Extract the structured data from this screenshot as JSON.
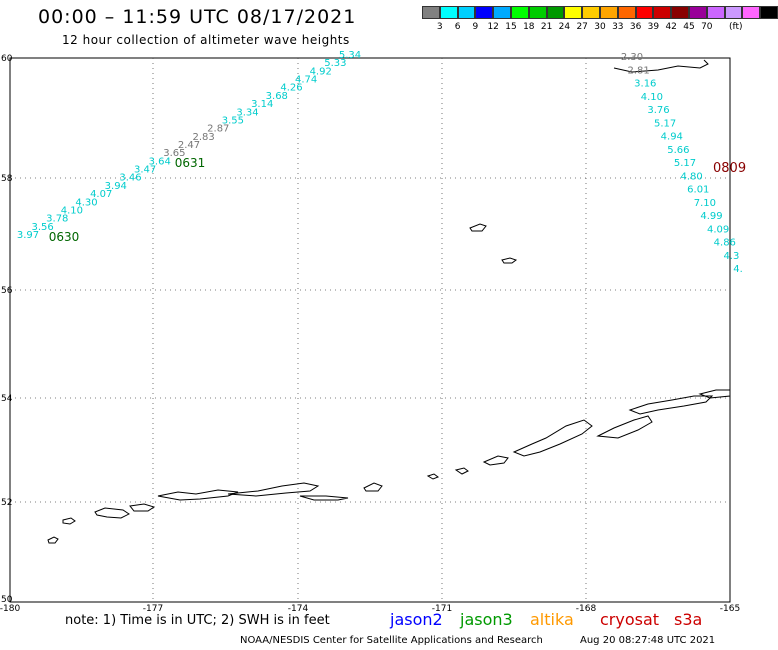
{
  "title": "00:00 – 11:59 UTC 08/17/2021",
  "subtitle": "12 hour collection of altimeter wave heights",
  "legend": {
    "colors": [
      "#808080",
      "#00ffff",
      "#00d0ff",
      "#0000ff",
      "#00aaff",
      "#00ff00",
      "#00cc00",
      "#009900",
      "#ffff00",
      "#ffcc00",
      "#ffa500",
      "#ff6600",
      "#ff0000",
      "#cc0000",
      "#880000",
      "#990099",
      "#cc66ff",
      "#cc99ff",
      "#ff66ff",
      "#000000"
    ],
    "labels": [
      "3",
      "6",
      "9",
      "12",
      "15",
      "18",
      "21",
      "24",
      "27",
      "30",
      "33",
      "36",
      "39",
      "42",
      "45",
      "70"
    ],
    "unit": "(ft)"
  },
  "axes": {
    "lon_ticks": [
      "-180",
      "-177",
      "-174",
      "-171",
      "-168",
      "-165"
    ],
    "lat_ticks": [
      "60",
      "58",
      "56",
      "54",
      "52",
      "50"
    ]
  },
  "tracks": {
    "track1": {
      "values": [
        "3.97",
        "3.56",
        "3.78",
        "4.10",
        "4.30",
        "4.07",
        "3.94",
        "3.46",
        "3.47",
        "3.64",
        "3.65",
        "2.47",
        "2.83",
        "2.87",
        "3.55",
        "3.34",
        "3.14",
        "3.68",
        "4.26",
        "4.74",
        "4.92",
        "5.33",
        "5.34"
      ],
      "label_a": "0630",
      "label_b": "0631",
      "color": "#00cccc"
    },
    "track2": {
      "values": [
        "2.30",
        "2.81",
        "3.16",
        "4.10",
        "3.76",
        "5.17",
        "4.94",
        "5.66",
        "5.17",
        "4.80",
        "6.01",
        "7.10",
        "4.99",
        "4.09",
        "4.86",
        "4.3",
        "4."
      ],
      "label": "0809",
      "color": "#00cccc",
      "label_color": "#880000"
    }
  },
  "note": "note: 1) Time is in UTC; 2) SWH is in feet",
  "satellites": [
    {
      "name": "jason2",
      "color": "#0000ff"
    },
    {
      "name": "jason3",
      "color": "#009900"
    },
    {
      "name": "altika",
      "color": "#ff9900"
    },
    {
      "name": "cryosat",
      "color": "#cc0000"
    },
    {
      "name": "s3a",
      "color": "#cc0000"
    }
  ],
  "credit": "NOAA/NESDIS Center for Satellite Applications and Research",
  "timestamp": "Aug 20 08:27:48 UTC 2021"
}
